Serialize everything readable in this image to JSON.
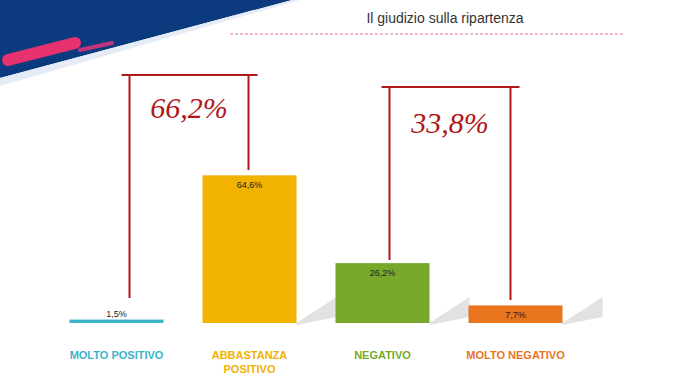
{
  "chart_data": {
    "type": "bar",
    "title": "Il giudizio sulla ripartenza",
    "categories": [
      "MOLTO POSITIVO",
      "ABBASTANZA POSITIVO",
      "NEGATIVO",
      "MOLTO NEGATIVO"
    ],
    "values": [
      1.5,
      64.6,
      26.2,
      7.7
    ],
    "value_labels": [
      "1,5%",
      "64,6%",
      "26,2%",
      "7,7%"
    ],
    "colors": [
      "#3cb4c8",
      "#f2b200",
      "#78a92c",
      "#e8741e"
    ],
    "ylim": [
      0,
      70
    ],
    "data_labels": true,
    "tick_labels": "x",
    "annotations": [
      "66,2%",
      "33,8%"
    ]
  }
}
